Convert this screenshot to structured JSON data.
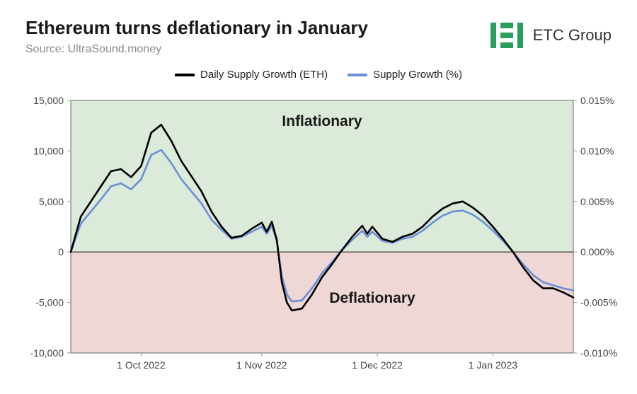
{
  "header": {
    "title": "Ethereum turns deflationary in January",
    "source": "Source: UltraSound.money",
    "logo_text": "ETC Group",
    "logo_color": "#2a9d5c"
  },
  "legend": {
    "items": [
      {
        "label": "Daily Supply Growth (ETH)",
        "color": "#000000"
      },
      {
        "label": "Supply Growth (%)",
        "color": "#6a8fd8"
      }
    ]
  },
  "chart": {
    "type": "line-dual-axis",
    "background": "#ffffff",
    "plot_border": "#666666",
    "region_inflationary": {
      "label": "Inflationary",
      "color": "#dcead9"
    },
    "region_deflationary": {
      "label": "Deflationary",
      "color": "#efd7d5"
    },
    "y_left": {
      "min": -10000,
      "max": 15000,
      "step": 5000,
      "ticks": [
        "-10,000",
        "-5,000",
        "0",
        "5,000",
        "10,000",
        "15,000"
      ]
    },
    "y_right": {
      "min": -0.01,
      "max": 0.015,
      "step": 0.005,
      "ticks": [
        "-0.010%",
        "-0.005%",
        "0.000%",
        "0.005%",
        "0.010%",
        "0.015%"
      ]
    },
    "x": {
      "ticks": [
        "1 Oct 2022",
        "1 Nov 2022",
        "1 Dec 2022",
        "1 Jan 2023"
      ],
      "tick_positions_pct": [
        14,
        38,
        61,
        84
      ]
    },
    "series_eth": {
      "color": "#000000",
      "width": 2.6,
      "points": [
        [
          0,
          0
        ],
        [
          2,
          3500
        ],
        [
          4,
          5000
        ],
        [
          6,
          6500
        ],
        [
          8,
          8000
        ],
        [
          10,
          8200
        ],
        [
          12,
          7400
        ],
        [
          14,
          8500
        ],
        [
          16,
          11800
        ],
        [
          18,
          12600
        ],
        [
          20,
          11000
        ],
        [
          22,
          9000
        ],
        [
          24,
          7500
        ],
        [
          26,
          6000
        ],
        [
          28,
          4000
        ],
        [
          30,
          2500
        ],
        [
          32,
          1400
        ],
        [
          34,
          1600
        ],
        [
          36,
          2300
        ],
        [
          38,
          2900
        ],
        [
          39,
          2000
        ],
        [
          40,
          3000
        ],
        [
          41,
          1200
        ],
        [
          42,
          -3000
        ],
        [
          43,
          -5000
        ],
        [
          44,
          -5800
        ],
        [
          46,
          -5600
        ],
        [
          48,
          -4200
        ],
        [
          50,
          -2500
        ],
        [
          52,
          -1200
        ],
        [
          54,
          200
        ],
        [
          56,
          1500
        ],
        [
          58,
          2600
        ],
        [
          59,
          1800
        ],
        [
          60,
          2500
        ],
        [
          62,
          1300
        ],
        [
          64,
          1000
        ],
        [
          66,
          1500
        ],
        [
          68,
          1800
        ],
        [
          70,
          2500
        ],
        [
          72,
          3500
        ],
        [
          74,
          4300
        ],
        [
          76,
          4800
        ],
        [
          78,
          5000
        ],
        [
          80,
          4400
        ],
        [
          82,
          3600
        ],
        [
          84,
          2500
        ],
        [
          86,
          1300
        ],
        [
          88,
          0
        ],
        [
          90,
          -1500
        ],
        [
          92,
          -2800
        ],
        [
          94,
          -3600
        ],
        [
          96,
          -3600
        ],
        [
          98,
          -4000
        ],
        [
          100,
          -4500
        ]
      ]
    },
    "series_pct": {
      "color": "#6a8fd8",
      "width": 2.6,
      "points": [
        [
          0,
          0
        ],
        [
          2,
          2800
        ],
        [
          4,
          4000
        ],
        [
          6,
          5200
        ],
        [
          8,
          6500
        ],
        [
          10,
          6800
        ],
        [
          12,
          6200
        ],
        [
          14,
          7200
        ],
        [
          16,
          9600
        ],
        [
          18,
          10100
        ],
        [
          20,
          8800
        ],
        [
          22,
          7200
        ],
        [
          24,
          6000
        ],
        [
          26,
          4800
        ],
        [
          28,
          3200
        ],
        [
          30,
          2200
        ],
        [
          32,
          1300
        ],
        [
          34,
          1500
        ],
        [
          36,
          2000
        ],
        [
          38,
          2500
        ],
        [
          39,
          1800
        ],
        [
          40,
          2600
        ],
        [
          41,
          1100
        ],
        [
          42,
          -2400
        ],
        [
          43,
          -4200
        ],
        [
          44,
          -4900
        ],
        [
          46,
          -4800
        ],
        [
          48,
          -3600
        ],
        [
          50,
          -2100
        ],
        [
          52,
          -1000
        ],
        [
          54,
          200
        ],
        [
          56,
          1200
        ],
        [
          58,
          2100
        ],
        [
          59,
          1500
        ],
        [
          60,
          2000
        ],
        [
          62,
          1100
        ],
        [
          64,
          900
        ],
        [
          66,
          1300
        ],
        [
          68,
          1500
        ],
        [
          70,
          2100
        ],
        [
          72,
          2900
        ],
        [
          74,
          3600
        ],
        [
          76,
          4000
        ],
        [
          78,
          4100
        ],
        [
          80,
          3700
        ],
        [
          82,
          3000
        ],
        [
          84,
          2100
        ],
        [
          86,
          1100
        ],
        [
          88,
          0
        ],
        [
          90,
          -1200
        ],
        [
          92,
          -2300
        ],
        [
          94,
          -3000
        ],
        [
          96,
          -3300
        ],
        [
          98,
          -3600
        ],
        [
          100,
          -3800
        ]
      ]
    }
  }
}
